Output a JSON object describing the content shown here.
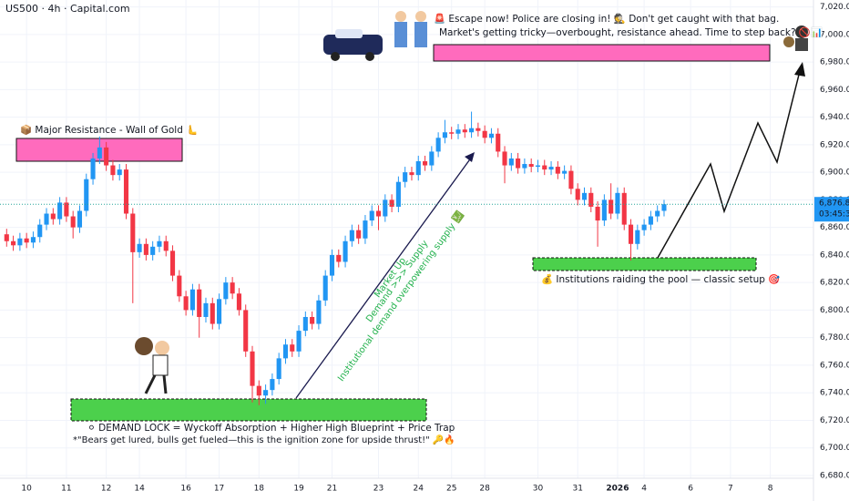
{
  "chart_data": {
    "type": "candlestick",
    "title": "US500 · 4h · Capital.com",
    "up_color": "#2196f3",
    "down_color": "#f23645",
    "open": [
      6855,
      6850,
      6847,
      6852,
      6849,
      6853,
      6862,
      6870,
      6866,
      6878,
      6868,
      6860,
      6872,
      6895,
      6910,
      6918,
      6905,
      6898,
      6902,
      6870,
      6842,
      6848,
      6840,
      6846,
      6850,
      6843,
      6825,
      6810,
      6800,
      6815,
      6795,
      6805,
      6790,
      6808,
      6820,
      6812,
      6800,
      6770,
      6745,
      6738,
      6742,
      6750,
      6765,
      6775,
      6770,
      6785,
      6795,
      6790,
      6807,
      6825,
      6840,
      6835,
      6850,
      6858,
      6852,
      6865,
      6872,
      6868,
      6880,
      6875,
      6893,
      6900,
      6898,
      6908,
      6905,
      6915,
      6925,
      6929,
      6928,
      6931,
      6929,
      6932,
      6930,
      6925,
      6928,
      6915,
      6905,
      6910,
      6903,
      6906,
      6904,
      6905,
      6902,
      6904,
      6899,
      6901,
      6888,
      6880,
      6885,
      6875,
      6865,
      6880,
      6870,
      6885,
      6862,
      6848,
      6858,
      6862,
      6868,
      6872
    ],
    "high": [
      6859,
      6854,
      6856,
      6856,
      6857,
      6866,
      6874,
      6874,
      6882,
      6882,
      6872,
      6876,
      6899,
      6914,
      6926,
      6922,
      6909,
      6906,
      6906,
      6874,
      6852,
      6852,
      6850,
      6854,
      6854,
      6847,
      6829,
      6814,
      6819,
      6819,
      6809,
      6809,
      6812,
      6824,
      6824,
      6816,
      6804,
      6774,
      6749,
      6746,
      6754,
      6769,
      6779,
      6779,
      6789,
      6799,
      6799,
      6811,
      6829,
      6844,
      6844,
      6854,
      6862,
      6862,
      6869,
      6876,
      6876,
      6884,
      6884,
      6897,
      6904,
      6904,
      6912,
      6912,
      6919,
      6929,
      6938,
      6933,
      6935,
      6935,
      6944,
      6936,
      6934,
      6932,
      6932,
      6919,
      6914,
      6914,
      6910,
      6910,
      6909,
      6909,
      6908,
      6908,
      6905,
      6905,
      6892,
      6889,
      6889,
      6879,
      6884,
      6892,
      6889,
      6889,
      6866,
      6862,
      6866,
      6872,
      6876,
      6880
    ],
    "low": [
      6846,
      6843,
      6843,
      6845,
      6845,
      6849,
      6858,
      6862,
      6862,
      6864,
      6852,
      6856,
      6868,
      6891,
      6906,
      6901,
      6894,
      6894,
      6866,
      6805,
      6838,
      6836,
      6836,
      6842,
      6839,
      6821,
      6806,
      6796,
      6796,
      6780,
      6791,
      6786,
      6786,
      6804,
      6808,
      6796,
      6766,
      6733,
      6731,
      6732,
      6738,
      6746,
      6761,
      6766,
      6766,
      6781,
      6786,
      6786,
      6803,
      6821,
      6831,
      6831,
      6846,
      6848,
      6848,
      6861,
      6858,
      6864,
      6871,
      6871,
      6889,
      6894,
      6894,
      6901,
      6901,
      6911,
      6921,
      6924,
      6924,
      6925,
      6925,
      6926,
      6921,
      6921,
      6911,
      6892,
      6901,
      6899,
      6899,
      6900,
      6900,
      6898,
      6898,
      6895,
      6895,
      6884,
      6876,
      6876,
      6871,
      6846,
      6861,
      6866,
      6866,
      6858,
      6836,
      6844,
      6854,
      6858,
      6864,
      6868
    ],
    "close": [
      6850,
      6847,
      6852,
      6849,
      6853,
      6862,
      6870,
      6866,
      6878,
      6868,
      6860,
      6872,
      6895,
      6910,
      6918,
      6905,
      6898,
      6902,
      6870,
      6842,
      6848,
      6840,
      6846,
      6850,
      6843,
      6825,
      6810,
      6800,
      6815,
      6795,
      6805,
      6790,
      6808,
      6820,
      6812,
      6800,
      6770,
      6745,
      6738,
      6742,
      6750,
      6765,
      6775,
      6770,
      6785,
      6795,
      6790,
      6807,
      6825,
      6840,
      6835,
      6850,
      6858,
      6852,
      6865,
      6872,
      6868,
      6880,
      6875,
      6893,
      6900,
      6898,
      6908,
      6905,
      6915,
      6925,
      6929,
      6928,
      6931,
      6929,
      6932,
      6930,
      6925,
      6928,
      6915,
      6905,
      6910,
      6903,
      6906,
      6904,
      6905,
      6902,
      6904,
      6899,
      6901,
      6888,
      6880,
      6885,
      6875,
      6865,
      6880,
      6870,
      6885,
      6862,
      6848,
      6858,
      6862,
      6868,
      6872,
      6876.8
    ],
    "xlim": [
      -1,
      121.5
    ],
    "xticks": [
      {
        "value": 3,
        "label": "10"
      },
      {
        "value": 9,
        "label": "11"
      },
      {
        "value": 15,
        "label": "12"
      },
      {
        "value": 20,
        "label": "14"
      },
      {
        "value": 27,
        "label": "16"
      },
      {
        "value": 32,
        "label": "17"
      },
      {
        "value": 38,
        "label": "18"
      },
      {
        "value": 44,
        "label": "19"
      },
      {
        "value": 49,
        "label": "21"
      },
      {
        "value": 56,
        "label": "23"
      },
      {
        "value": 62,
        "label": "24"
      },
      {
        "value": 67,
        "label": "25"
      },
      {
        "value": 72,
        "label": "28"
      },
      {
        "value": 80,
        "label": "30"
      },
      {
        "value": 86,
        "label": "31"
      },
      {
        "value": 92,
        "label": "2026"
      },
      {
        "value": 96,
        "label": "4"
      },
      {
        "value": 103,
        "label": "6"
      },
      {
        "value": 109,
        "label": "7"
      },
      {
        "value": 115,
        "label": "8"
      }
    ],
    "ylim": [
      6678,
      7025
    ],
    "yticks": [
      {
        "value": 6680,
        "label": "6,680.0"
      },
      {
        "value": 6700,
        "label": "6,700.0"
      },
      {
        "value": 6720,
        "label": "6,720.0"
      },
      {
        "value": 6740,
        "label": "6,740.0"
      },
      {
        "value": 6760,
        "label": "6,760.0"
      },
      {
        "value": 6780,
        "label": "6,780.0"
      },
      {
        "value": 6800,
        "label": "6,800.0"
      },
      {
        "value": 6820,
        "label": "6,820.0"
      },
      {
        "value": 6840,
        "label": "6,840.0"
      },
      {
        "value": 6860,
        "label": "6,860.0"
      },
      {
        "value": 6880,
        "label": "6,880.0"
      },
      {
        "value": 6900,
        "label": "6,900.0"
      },
      {
        "value": 6920,
        "label": "6,920.0"
      },
      {
        "value": 6940,
        "label": "6,940.0"
      },
      {
        "value": 6960,
        "label": "6,960.0"
      },
      {
        "value": 6980,
        "label": "6,980.0"
      },
      {
        "value": 7000,
        "label": "7,000.0"
      },
      {
        "value": 7020,
        "label": "7,020.0"
      }
    ],
    "last_price": {
      "value": 6876.8,
      "label": "6,876.8"
    },
    "countdown": "03:45:35",
    "annotations": {
      "resistance": "📦 Major Resistance - Wall of Gold 🫷",
      "escape_1": "🚨 Escape now! Police are closing in! 🕵️ Don't get caught with that bag.",
      "escape_2": "Market's getting tricky—overbought, resistance ahead. Time to step back? 🚫📊",
      "demand_1": "⚪ DEMAND LOCK = Wyckoff Absorption + Higher High Blueprint + Price Trap",
      "demand_2": "*\"Bears get lured, bulls get fueled—this is the ignition zone for upside thrust!\" 🔑🔥",
      "institutions": "💰 Institutions raiding the pool — classic setup 🎯",
      "diag_1": "Market Up",
      "diag_2": "Demand >>> Supply",
      "diag_3": "Institutional demand overpowering supply 💹"
    }
  }
}
